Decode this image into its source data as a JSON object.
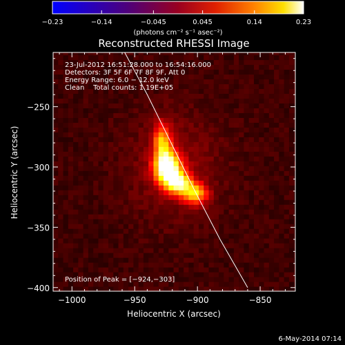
{
  "chart_data": {
    "type": "heatmap",
    "title": "Reconstructed RHESSI Image",
    "xlabel": "Heliocentric X (arcsec)",
    "ylabel": "Heliocentric Y (arcsec)",
    "xlim": [
      -1015,
      -822
    ],
    "ylim": [
      -403,
      -205
    ],
    "x_ticks": [
      -1000,
      -950,
      -900,
      -850
    ],
    "x_tick_labels": [
      "−1000",
      "−950",
      "−900",
      "−850"
    ],
    "y_ticks": [
      -250,
      -300,
      -350,
      -400
    ],
    "y_tick_labels": [
      "−250",
      "−300",
      "−350",
      "−400"
    ],
    "colorbar": {
      "range": [
        -0.23,
        0.23
      ],
      "ticks": [
        -0.23,
        -0.14,
        -0.045,
        0.045,
        0.14,
        0.23
      ],
      "tick_labels": [
        "−0.23",
        "−0.14",
        "−0.045",
        "0.045",
        "0.14",
        "0.23"
      ],
      "label": "(photons cm⁻² s⁻¹ asec⁻²)",
      "colormap": "hot (blue → purple → red → yellow → white)"
    },
    "annotations": [
      "23-Jul-2012 16:51:28.000 to 16:54:16.000",
      "Detectors: 3F 5F 6F 7F 8F 9F, Att 0",
      "Energy Range: 6.0 − 12.0 keV",
      "Clean    Total counts: 1.19E+05"
    ],
    "peak_label": "Position of Peak = [−924,−303]",
    "peak": {
      "x": -924,
      "y": -303
    },
    "sources": [
      {
        "x": -928,
        "y": -278,
        "sx": 5,
        "sy": 10,
        "amp": 0.5
      },
      {
        "x": -924,
        "y": -300,
        "sx": 7,
        "sy": 9,
        "amp": 1.0
      },
      {
        "x": -915,
        "y": -313,
        "sx": 7,
        "sy": 6,
        "amp": 0.75
      },
      {
        "x": -902,
        "y": -322,
        "sx": 7,
        "sy": 6,
        "amp": 0.55
      }
    ],
    "limb_curve": [
      [
        -959,
        -203
      ],
      [
        -940,
        -240
      ],
      [
        -921,
        -280
      ],
      [
        -902,
        -320
      ],
      [
        -882,
        -360
      ],
      [
        -860,
        -400
      ]
    ],
    "timestamp": "6-May-2014 07:14"
  }
}
